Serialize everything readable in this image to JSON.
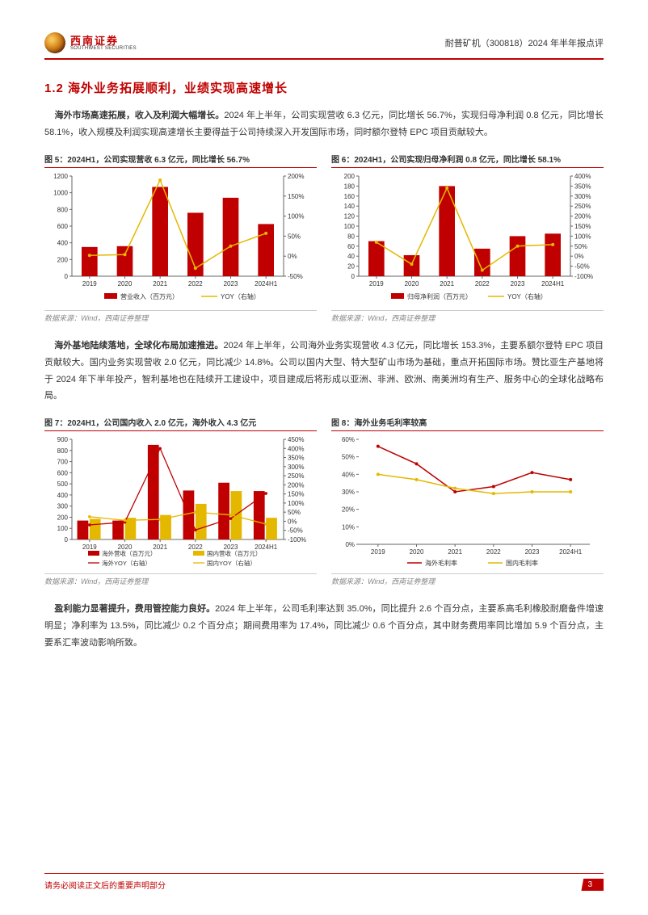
{
  "header": {
    "logo_cn": "西南证券",
    "logo_en": "SOUTHWEST SECURITIES",
    "right": "耐普矿机（300818）2024 年半年报点评"
  },
  "section_title": "1.2 海外业务拓展顺利，业绩实现高速增长",
  "para1": {
    "bold": "海外市场高速拓展，收入及利润大幅增长。",
    "rest": "2024 年上半年，公司实现营收 6.3 亿元，同比增长 56.7%，实现归母净利润 0.8 亿元，同比增长 58.1%，收入规模及利润实现高速增长主要得益于公司持续深入开发国际市场，同时额尔登特 EPC 项目贡献较大。"
  },
  "chart5": {
    "title": "图 5：2024H1，公司实现营收 6.3 亿元，同比增长 56.7%",
    "type": "bar+line",
    "categories": [
      "2019",
      "2020",
      "2021",
      "2022",
      "2023",
      "2024H1"
    ],
    "bar_label": "营业收入（百万元）",
    "bar_values": [
      350,
      360,
      1070,
      760,
      940,
      625
    ],
    "bar_color": "#c00000",
    "line_label": "YOY（右轴）",
    "line_values": [
      2,
      4,
      190,
      -30,
      25,
      57
    ],
    "line_color": "#e5b800",
    "y1_lim": [
      0,
      1200
    ],
    "y1_step": 200,
    "y2_lim": [
      -50,
      200
    ],
    "y2_step": 50,
    "tick_fontsize": 8,
    "legend_fontsize": 8,
    "axis_color": "#666",
    "bar_width": 0.45
  },
  "chart6": {
    "title": "图 6：2024H1，公司实现归母净利润 0.8 亿元，同比增长 58.1%",
    "type": "bar+line",
    "categories": [
      "2019",
      "2020",
      "2021",
      "2022",
      "2023",
      "2024H1"
    ],
    "bar_label": "归母净利润（百万元）",
    "bar_values": [
      70,
      42,
      180,
      55,
      80,
      85
    ],
    "bar_color": "#c00000",
    "line_label": "YOY（右轴）",
    "line_values": [
      70,
      -40,
      340,
      -70,
      50,
      58
    ],
    "line_color": "#e5b800",
    "y1_lim": [
      0,
      200
    ],
    "y1_step": 20,
    "y2_lim": [
      -100,
      400
    ],
    "y2_step": 50,
    "tick_fontsize": 8,
    "legend_fontsize": 8,
    "axis_color": "#666",
    "bar_width": 0.45
  },
  "source_row1_left": "数据来源：Wind，西南证券整理",
  "source_row1_right": "数据来源：Wind，西南证券整理",
  "para2": {
    "bold": "海外基地陆续落地，全球化布局加速推进。",
    "rest": "2024 年上半年，公司海外业务实现营收 4.3 亿元，同比增长 153.3%，主要系额尔登特 EPC 项目贡献较大。国内业务实现营收 2.0 亿元，同比减少 14.8%。公司以国内大型、特大型矿山市场为基础，重点开拓国际市场。赞比亚生产基地将于 2024 年下半年投产，智利基地也在陆续开工建设中，项目建成后将形成以亚洲、非洲、欧洲、南美洲均有生产、服务中心的全球化战略布局。"
  },
  "chart7": {
    "title": "图 7：2024H1，公司国内收入 2.0 亿元，海外收入 4.3 亿元",
    "type": "double-bar+double-line",
    "categories": [
      "2019",
      "2020",
      "2021",
      "2022",
      "2023",
      "2024H1"
    ],
    "series": [
      {
        "label": "海外营收（百万元）",
        "type": "bar",
        "color": "#c00000",
        "values": [
          170,
          170,
          850,
          440,
          510,
          435
        ]
      },
      {
        "label": "国内营收（百万元）",
        "type": "bar",
        "color": "#e5b800",
        "values": [
          185,
          195,
          220,
          320,
          435,
          195
        ]
      },
      {
        "label": "海外YOY（右轴）",
        "type": "line",
        "color": "#c00000",
        "values": [
          -20,
          -5,
          400,
          -48,
          15,
          153
        ]
      },
      {
        "label": "国内YOY（右轴）",
        "type": "line",
        "color": "#e5b800",
        "values": [
          25,
          5,
          10,
          50,
          35,
          -15
        ]
      }
    ],
    "y1_lim": [
      0,
      900
    ],
    "y1_step": 100,
    "y2_lim": [
      -100,
      450
    ],
    "y2_step": 50,
    "tick_fontsize": 8,
    "legend_fontsize": 7.5,
    "axis_color": "#666",
    "bar_width": 0.3
  },
  "chart8": {
    "title": "图 8：海外业务毛利率较高",
    "type": "line",
    "categories": [
      "2019",
      "2020",
      "2021",
      "2022",
      "2023",
      "2024H1"
    ],
    "series": [
      {
        "label": "海外毛利率",
        "color": "#c00000",
        "values": [
          56,
          46,
          30,
          33,
          41,
          37
        ]
      },
      {
        "label": "国内毛利率",
        "color": "#e5b800",
        "values": [
          40,
          37,
          32,
          29,
          30,
          30
        ]
      }
    ],
    "y_lim": [
      0,
      60
    ],
    "y_step": 10,
    "y_suffix": "%",
    "tick_fontsize": 8,
    "legend_fontsize": 8,
    "axis_color": "#666"
  },
  "source_row2_left": "数据来源：Wind，西南证券整理",
  "source_row2_right": "数据来源：Wind，西南证券整理",
  "para3": {
    "bold": "盈利能力显著提升，费用管控能力良好。",
    "rest": "2024 年上半年，公司毛利率达到 35.0%，同比提升 2.6 个百分点，主要系高毛利橡胶耐磨备件增速明显；净利率为 13.5%，同比减少 0.2 个百分点；期间费用率为 17.4%，同比减少 0.6 个百分点，其中财务费用率同比增加 5.9 个百分点，主要系汇率波动影响所致。"
  },
  "footer": {
    "text": "请务必阅读正文后的重要声明部分",
    "page": "3"
  }
}
